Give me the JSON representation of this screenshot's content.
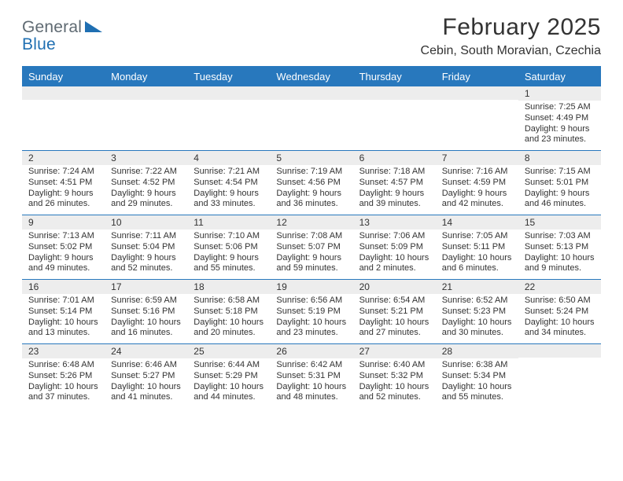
{
  "logo": {
    "line1": "General",
    "line2": "Blue"
  },
  "header": {
    "title": "February 2025",
    "location": "Cebin, South Moravian, Czechia"
  },
  "colors": {
    "header_bg": "#2878bd",
    "header_text": "#ffffff",
    "strip_bg": "#ededed",
    "rule": "#2878bd",
    "logo_gray": "#5f6a72",
    "logo_blue": "#1f6fb2"
  },
  "dayNames": [
    "Sunday",
    "Monday",
    "Tuesday",
    "Wednesday",
    "Thursday",
    "Friday",
    "Saturday"
  ],
  "grid": {
    "firstWeekdayIndex": 6,
    "days": [
      {
        "n": 1,
        "sunrise": "7:25 AM",
        "sunset": "4:49 PM",
        "daylight": "9 hours and 23 minutes."
      },
      {
        "n": 2,
        "sunrise": "7:24 AM",
        "sunset": "4:51 PM",
        "daylight": "9 hours and 26 minutes."
      },
      {
        "n": 3,
        "sunrise": "7:22 AM",
        "sunset": "4:52 PM",
        "daylight": "9 hours and 29 minutes."
      },
      {
        "n": 4,
        "sunrise": "7:21 AM",
        "sunset": "4:54 PM",
        "daylight": "9 hours and 33 minutes."
      },
      {
        "n": 5,
        "sunrise": "7:19 AM",
        "sunset": "4:56 PM",
        "daylight": "9 hours and 36 minutes."
      },
      {
        "n": 6,
        "sunrise": "7:18 AM",
        "sunset": "4:57 PM",
        "daylight": "9 hours and 39 minutes."
      },
      {
        "n": 7,
        "sunrise": "7:16 AM",
        "sunset": "4:59 PM",
        "daylight": "9 hours and 42 minutes."
      },
      {
        "n": 8,
        "sunrise": "7:15 AM",
        "sunset": "5:01 PM",
        "daylight": "9 hours and 46 minutes."
      },
      {
        "n": 9,
        "sunrise": "7:13 AM",
        "sunset": "5:02 PM",
        "daylight": "9 hours and 49 minutes."
      },
      {
        "n": 10,
        "sunrise": "7:11 AM",
        "sunset": "5:04 PM",
        "daylight": "9 hours and 52 minutes."
      },
      {
        "n": 11,
        "sunrise": "7:10 AM",
        "sunset": "5:06 PM",
        "daylight": "9 hours and 55 minutes."
      },
      {
        "n": 12,
        "sunrise": "7:08 AM",
        "sunset": "5:07 PM",
        "daylight": "9 hours and 59 minutes."
      },
      {
        "n": 13,
        "sunrise": "7:06 AM",
        "sunset": "5:09 PM",
        "daylight": "10 hours and 2 minutes."
      },
      {
        "n": 14,
        "sunrise": "7:05 AM",
        "sunset": "5:11 PM",
        "daylight": "10 hours and 6 minutes."
      },
      {
        "n": 15,
        "sunrise": "7:03 AM",
        "sunset": "5:13 PM",
        "daylight": "10 hours and 9 minutes."
      },
      {
        "n": 16,
        "sunrise": "7:01 AM",
        "sunset": "5:14 PM",
        "daylight": "10 hours and 13 minutes."
      },
      {
        "n": 17,
        "sunrise": "6:59 AM",
        "sunset": "5:16 PM",
        "daylight": "10 hours and 16 minutes."
      },
      {
        "n": 18,
        "sunrise": "6:58 AM",
        "sunset": "5:18 PM",
        "daylight": "10 hours and 20 minutes."
      },
      {
        "n": 19,
        "sunrise": "6:56 AM",
        "sunset": "5:19 PM",
        "daylight": "10 hours and 23 minutes."
      },
      {
        "n": 20,
        "sunrise": "6:54 AM",
        "sunset": "5:21 PM",
        "daylight": "10 hours and 27 minutes."
      },
      {
        "n": 21,
        "sunrise": "6:52 AM",
        "sunset": "5:23 PM",
        "daylight": "10 hours and 30 minutes."
      },
      {
        "n": 22,
        "sunrise": "6:50 AM",
        "sunset": "5:24 PM",
        "daylight": "10 hours and 34 minutes."
      },
      {
        "n": 23,
        "sunrise": "6:48 AM",
        "sunset": "5:26 PM",
        "daylight": "10 hours and 37 minutes."
      },
      {
        "n": 24,
        "sunrise": "6:46 AM",
        "sunset": "5:27 PM",
        "daylight": "10 hours and 41 minutes."
      },
      {
        "n": 25,
        "sunrise": "6:44 AM",
        "sunset": "5:29 PM",
        "daylight": "10 hours and 44 minutes."
      },
      {
        "n": 26,
        "sunrise": "6:42 AM",
        "sunset": "5:31 PM",
        "daylight": "10 hours and 48 minutes."
      },
      {
        "n": 27,
        "sunrise": "6:40 AM",
        "sunset": "5:32 PM",
        "daylight": "10 hours and 52 minutes."
      },
      {
        "n": 28,
        "sunrise": "6:38 AM",
        "sunset": "5:34 PM",
        "daylight": "10 hours and 55 minutes."
      }
    ]
  },
  "labels": {
    "sunrise": "Sunrise:",
    "sunset": "Sunset:",
    "daylight": "Daylight:"
  }
}
